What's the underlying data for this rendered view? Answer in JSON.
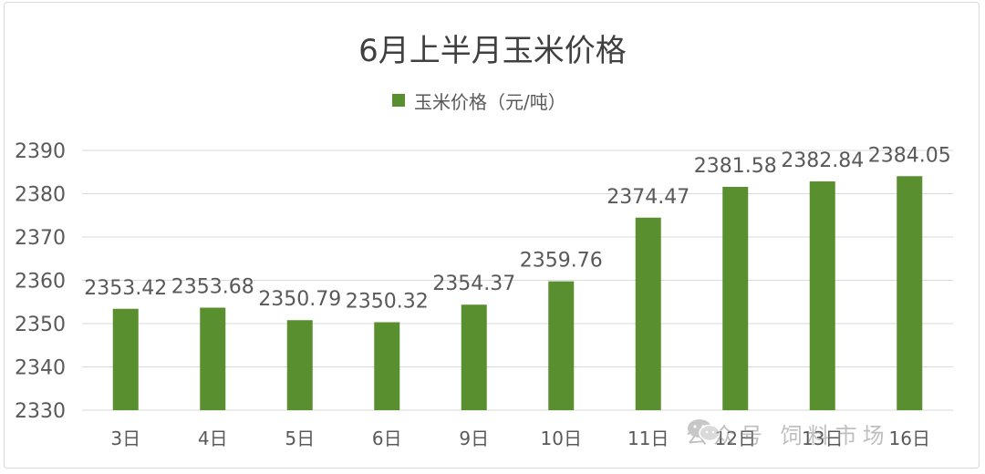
{
  "chart_data": {
    "type": "bar",
    "title": "6月上半月玉米价格",
    "legend_position": "top",
    "grid": true,
    "colors": {
      "bar": "#5a8f2f",
      "grid": "#d9d9d9",
      "text": "#595959",
      "title": "#404040"
    },
    "ylim": [
      2330,
      2390
    ],
    "yticks": [
      2330,
      2340,
      2350,
      2360,
      2370,
      2380,
      2390
    ],
    "categories": [
      "3日",
      "4日",
      "5日",
      "6日",
      "9日",
      "10日",
      "11日",
      "12日",
      "13日",
      "16日"
    ],
    "series": [
      {
        "name": "玉米价格（元/吨）",
        "values": [
          2353.42,
          2353.68,
          2350.79,
          2350.32,
          2354.37,
          2359.76,
          2374.47,
          2381.58,
          2382.84,
          2384.05
        ],
        "labels": [
          "2353.42",
          "2353.68",
          "2350.79",
          "2350.32",
          "2354.37",
          "2359.76",
          "2374.47",
          "2381.58",
          "2382.84",
          "2384.05"
        ]
      }
    ]
  },
  "watermark": {
    "icon": "wechat-icon",
    "text": "公众号 饲料市场"
  }
}
